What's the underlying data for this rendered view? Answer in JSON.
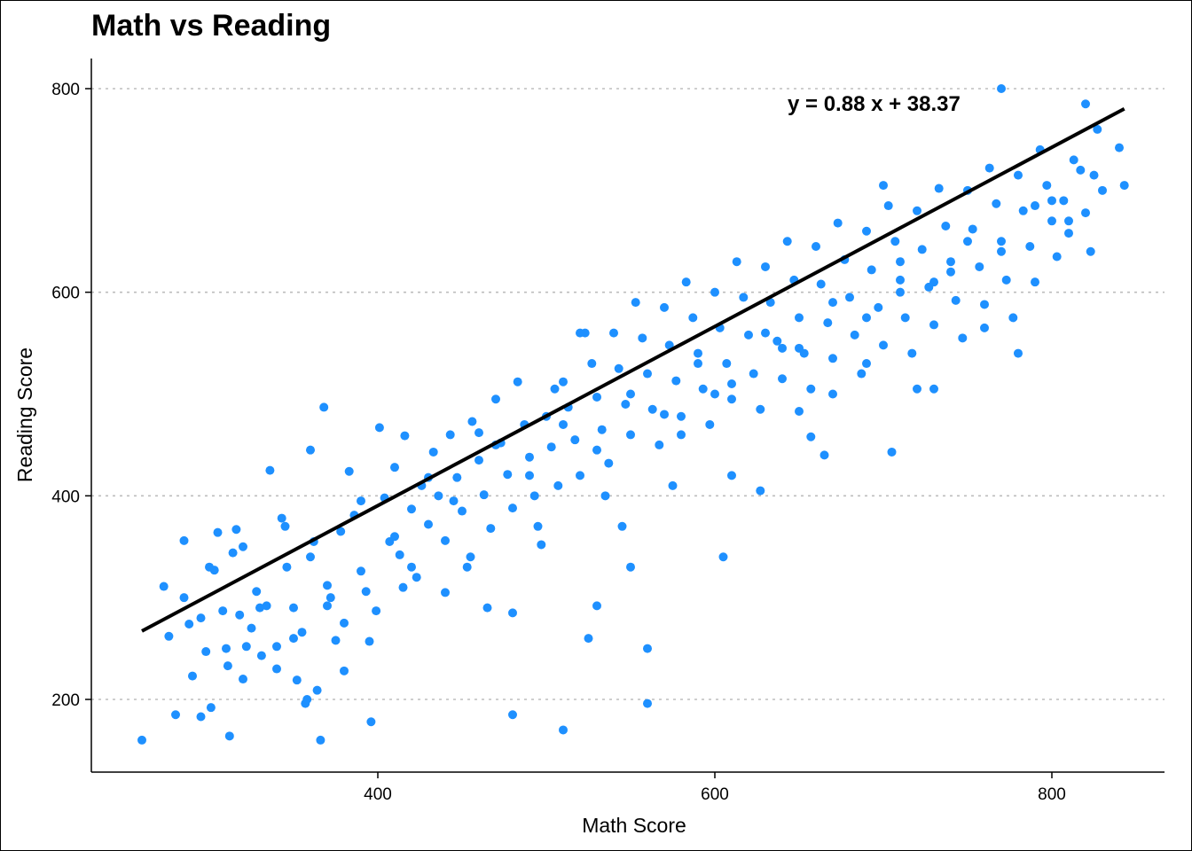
{
  "chart_data": {
    "type": "scatter",
    "title": "Math vs Reading",
    "xlabel": "Math Score",
    "ylabel": "Reading Score",
    "xlim": [
      245,
      848
    ],
    "ylim": [
      130,
      830
    ],
    "x_ticks": [
      400,
      600,
      800
    ],
    "y_ticks": [
      200,
      400,
      600,
      800
    ],
    "grid": "horizontal-dotted",
    "point_color": "#1E90FF",
    "line_color": "#000000",
    "regression": {
      "slope": 0.88,
      "intercept": 38.37,
      "x_range": [
        260,
        843
      ],
      "label": "y =  0.88 x +  38.37"
    },
    "points": [
      [
        260,
        160
      ],
      [
        273,
        311
      ],
      [
        276,
        262
      ],
      [
        280,
        185
      ],
      [
        285,
        356
      ],
      [
        288,
        274
      ],
      [
        290,
        223
      ],
      [
        295,
        183
      ],
      [
        298,
        247
      ],
      [
        301,
        192
      ],
      [
        303,
        327
      ],
      [
        305,
        364
      ],
      [
        308,
        287
      ],
      [
        311,
        233
      ],
      [
        312,
        164
      ],
      [
        314,
        344
      ],
      [
        316,
        367
      ],
      [
        318,
        283
      ],
      [
        320,
        220
      ],
      [
        322,
        252
      ],
      [
        325,
        270
      ],
      [
        328,
        306
      ],
      [
        331,
        243
      ],
      [
        334,
        292
      ],
      [
        336,
        425
      ],
      [
        340,
        252
      ],
      [
        343,
        378
      ],
      [
        346,
        330
      ],
      [
        350,
        290
      ],
      [
        352,
        219
      ],
      [
        355,
        266
      ],
      [
        357,
        196
      ],
      [
        358,
        200
      ],
      [
        360,
        445
      ],
      [
        362,
        355
      ],
      [
        364,
        209
      ],
      [
        366,
        160
      ],
      [
        368,
        487
      ],
      [
        370,
        312
      ],
      [
        372,
        300
      ],
      [
        375,
        258
      ],
      [
        378,
        365
      ],
      [
        380,
        228
      ],
      [
        383,
        424
      ],
      [
        386,
        381
      ],
      [
        390,
        326
      ],
      [
        393,
        306
      ],
      [
        396,
        178
      ],
      [
        399,
        287
      ],
      [
        401,
        467
      ],
      [
        404,
        398
      ],
      [
        407,
        355
      ],
      [
        410,
        428
      ],
      [
        413,
        342
      ],
      [
        416,
        459
      ],
      [
        420,
        387
      ],
      [
        423,
        320
      ],
      [
        426,
        410
      ],
      [
        430,
        372
      ],
      [
        433,
        443
      ],
      [
        436,
        400
      ],
      [
        440,
        356
      ],
      [
        443,
        460
      ],
      [
        447,
        418
      ],
      [
        450,
        385
      ],
      [
        453,
        330
      ],
      [
        456,
        473
      ],
      [
        460,
        435
      ],
      [
        463,
        401
      ],
      [
        467,
        368
      ],
      [
        470,
        495
      ],
      [
        473,
        452
      ],
      [
        477,
        421
      ],
      [
        480,
        388
      ],
      [
        483,
        512
      ],
      [
        487,
        470
      ],
      [
        490,
        438
      ],
      [
        493,
        400
      ],
      [
        497,
        352
      ],
      [
        500,
        478
      ],
      [
        503,
        448
      ],
      [
        507,
        410
      ],
      [
        510,
        512
      ],
      [
        513,
        487
      ],
      [
        517,
        455
      ],
      [
        520,
        420
      ],
      [
        523,
        560
      ],
      [
        527,
        530
      ],
      [
        530,
        497
      ],
      [
        533,
        465
      ],
      [
        537,
        432
      ],
      [
        540,
        560
      ],
      [
        543,
        525
      ],
      [
        547,
        490
      ],
      [
        550,
        460
      ],
      [
        553,
        590
      ],
      [
        557,
        555
      ],
      [
        560,
        520
      ],
      [
        563,
        485
      ],
      [
        567,
        450
      ],
      [
        570,
        585
      ],
      [
        573,
        548
      ],
      [
        577,
        513
      ],
      [
        580,
        478
      ],
      [
        583,
        610
      ],
      [
        587,
        575
      ],
      [
        590,
        540
      ],
      [
        593,
        505
      ],
      [
        597,
        470
      ],
      [
        600,
        600
      ],
      [
        603,
        565
      ],
      [
        607,
        530
      ],
      [
        610,
        495
      ],
      [
        613,
        630
      ],
      [
        617,
        595
      ],
      [
        620,
        558
      ],
      [
        623,
        520
      ],
      [
        627,
        485
      ],
      [
        630,
        625
      ],
      [
        633,
        590
      ],
      [
        637,
        552
      ],
      [
        640,
        515
      ],
      [
        643,
        650
      ],
      [
        647,
        612
      ],
      [
        650,
        575
      ],
      [
        653,
        540
      ],
      [
        657,
        505
      ],
      [
        660,
        645
      ],
      [
        663,
        608
      ],
      [
        667,
        570
      ],
      [
        670,
        535
      ],
      [
        673,
        668
      ],
      [
        677,
        632
      ],
      [
        680,
        595
      ],
      [
        683,
        558
      ],
      [
        687,
        520
      ],
      [
        690,
        660
      ],
      [
        693,
        622
      ],
      [
        697,
        585
      ],
      [
        700,
        548
      ],
      [
        703,
        685
      ],
      [
        707,
        650
      ],
      [
        710,
        612
      ],
      [
        713,
        575
      ],
      [
        717,
        540
      ],
      [
        720,
        680
      ],
      [
        723,
        642
      ],
      [
        727,
        605
      ],
      [
        730,
        568
      ],
      [
        733,
        702
      ],
      [
        737,
        665
      ],
      [
        740,
        630
      ],
      [
        743,
        592
      ],
      [
        747,
        555
      ],
      [
        750,
        700
      ],
      [
        753,
        662
      ],
      [
        757,
        625
      ],
      [
        760,
        588
      ],
      [
        763,
        722
      ],
      [
        767,
        687
      ],
      [
        770,
        650
      ],
      [
        773,
        612
      ],
      [
        777,
        575
      ],
      [
        780,
        715
      ],
      [
        783,
        680
      ],
      [
        787,
        645
      ],
      [
        790,
        610
      ],
      [
        793,
        740
      ],
      [
        797,
        705
      ],
      [
        800,
        670
      ],
      [
        803,
        635
      ],
      [
        807,
        690
      ],
      [
        810,
        658
      ],
      [
        813,
        730
      ],
      [
        817,
        720
      ],
      [
        820,
        678
      ],
      [
        823,
        640
      ],
      [
        827,
        760
      ],
      [
        830,
        700
      ],
      [
        843,
        705
      ],
      [
        820,
        785
      ],
      [
        770,
        800
      ],
      [
        700,
        705
      ],
      [
        705,
        443
      ],
      [
        657,
        458
      ],
      [
        627,
        405
      ],
      [
        605,
        340
      ],
      [
        530,
        292
      ],
      [
        525,
        260
      ],
      [
        510,
        170
      ],
      [
        480,
        185
      ],
      [
        465,
        290
      ],
      [
        560,
        196
      ],
      [
        550,
        330
      ],
      [
        480,
        285
      ],
      [
        440,
        305
      ],
      [
        420,
        330
      ],
      [
        505,
        505
      ],
      [
        600,
        500
      ],
      [
        650,
        483
      ],
      [
        690,
        530
      ],
      [
        720,
        505
      ],
      [
        760,
        565
      ],
      [
        780,
        540
      ],
      [
        560,
        250
      ],
      [
        545,
        370
      ],
      [
        340,
        230
      ],
      [
        370,
        292
      ],
      [
        395,
        257
      ],
      [
        460,
        462
      ],
      [
        520,
        560
      ],
      [
        580,
        460
      ],
      [
        640,
        545
      ],
      [
        670,
        500
      ],
      [
        710,
        600
      ],
      [
        740,
        620
      ],
      [
        800,
        690
      ],
      [
        730,
        505
      ],
      [
        665,
        440
      ],
      [
        610,
        420
      ],
      [
        575,
        410
      ],
      [
        535,
        400
      ],
      [
        495,
        370
      ],
      [
        455,
        340
      ],
      [
        415,
        310
      ],
      [
        380,
        275
      ],
      [
        350,
        260
      ],
      [
        330,
        290
      ],
      [
        310,
        250
      ],
      [
        295,
        280
      ],
      [
        285,
        300
      ],
      [
        300,
        330
      ],
      [
        320,
        350
      ],
      [
        345,
        370
      ],
      [
        360,
        340
      ],
      [
        390,
        395
      ],
      [
        410,
        360
      ],
      [
        430,
        418
      ],
      [
        445,
        395
      ],
      [
        470,
        450
      ],
      [
        490,
        420
      ],
      [
        510,
        470
      ],
      [
        530,
        445
      ],
      [
        550,
        500
      ],
      [
        570,
        480
      ],
      [
        590,
        530
      ],
      [
        610,
        510
      ],
      [
        630,
        560
      ],
      [
        650,
        545
      ],
      [
        670,
        590
      ],
      [
        690,
        575
      ],
      [
        710,
        630
      ],
      [
        730,
        610
      ],
      [
        750,
        650
      ],
      [
        770,
        640
      ],
      [
        790,
        685
      ],
      [
        810,
        670
      ],
      [
        825,
        715
      ],
      [
        840,
        742
      ]
    ]
  }
}
